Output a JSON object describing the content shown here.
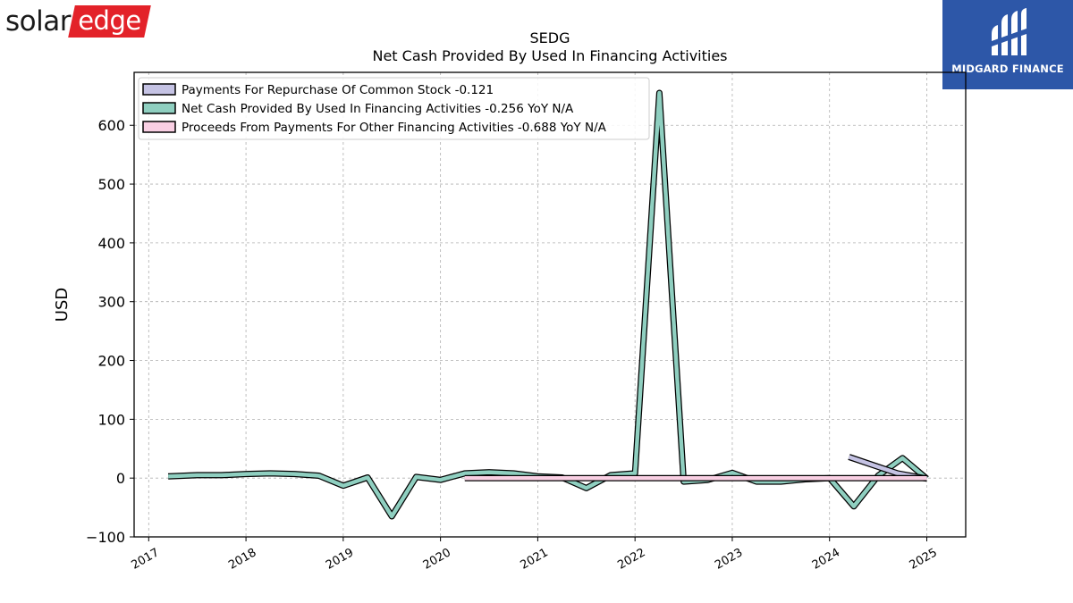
{
  "brand": {
    "left_logo_part1": "solar",
    "left_logo_part2": "edge",
    "left_logo_color": "#e32229",
    "right_logo_text": "MIDGARD FINANCE",
    "right_logo_color": "#2d57a8"
  },
  "chart_data": {
    "type": "line",
    "title": "SEDG",
    "subtitle": "Net Cash Provided By Used In Financing Activities",
    "xlabel": "",
    "ylabel": "USD",
    "xlim": [
      2016.85,
      2025.4
    ],
    "ylim": [
      -100,
      690
    ],
    "x_ticks": [
      2017,
      2018,
      2019,
      2020,
      2021,
      2022,
      2023,
      2024,
      2025
    ],
    "y_ticks": [
      -100,
      0,
      100,
      200,
      300,
      400,
      500,
      600
    ],
    "y_tick_labels": [
      "−100",
      "0",
      "100",
      "200",
      "300",
      "400",
      "500",
      "600"
    ],
    "grid": true,
    "legend_position": "top-left",
    "series": [
      {
        "name": "Payments For Repurchase Of Common Stock",
        "legend_label": "Payments For Repurchase Of Common Stock  -0.121",
        "color": "#c5c3e4",
        "x": [
          2024.2,
          2024.45,
          2024.7,
          2025.0
        ],
        "y": [
          36,
          22,
          8,
          -1
        ]
      },
      {
        "name": "Net Cash Provided By Used In Financing Activities",
        "legend_label": "Net Cash Provided By Used In Financing Activities  -0.256 YoY N/A",
        "color": "#8fcfc0",
        "x": [
          2017.2,
          2017.5,
          2017.75,
          2018.0,
          2018.25,
          2018.5,
          2018.75,
          2019.0,
          2019.25,
          2019.5,
          2019.75,
          2020.0,
          2020.25,
          2020.5,
          2020.75,
          2021.0,
          2021.25,
          2021.5,
          2021.75,
          2022.0,
          2022.25,
          2022.5,
          2022.75,
          2023.0,
          2023.25,
          2023.5,
          2023.75,
          2024.0,
          2024.25,
          2024.5,
          2024.75,
          2025.0
        ],
        "y": [
          3,
          5,
          5,
          7,
          8,
          7,
          4,
          -13,
          1,
          -65,
          2,
          -3,
          8,
          10,
          8,
          3,
          1,
          -17,
          5,
          8,
          655,
          -6,
          -3,
          9,
          -6,
          -6,
          -2,
          0,
          -48,
          4,
          34,
          -1
        ]
      },
      {
        "name": "Proceeds From Payments For Other Financing Activities",
        "legend_label": "Proceeds From Payments For Other Financing Activities  -0.688 YoY N/A",
        "color": "#f9cfe3",
        "x": [
          2020.25,
          2021.0,
          2022.0,
          2023.0,
          2024.0,
          2025.0
        ],
        "y": [
          0,
          0,
          0,
          0,
          0,
          0
        ]
      }
    ]
  }
}
